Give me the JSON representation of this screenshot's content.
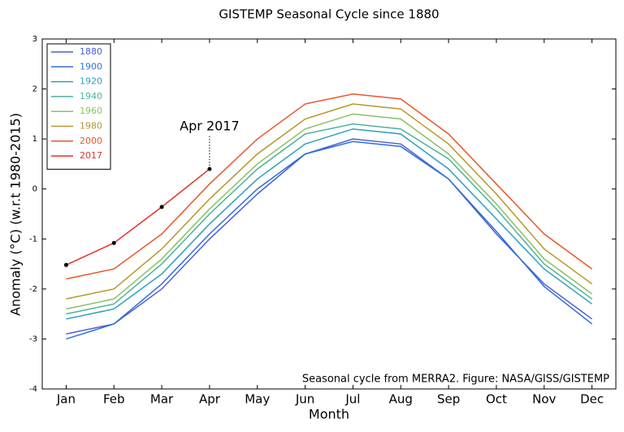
{
  "chart_data": {
    "type": "line",
    "title": "GISTEMP Seasonal Cycle since 1880",
    "x_label": "Month",
    "y_label": "Anomaly (°C) (w.r.t 1980-2015)",
    "annotation": "Apr 2017",
    "footnote": "Seasonal cycle from MERRA2. Figure: NASA/GISS/GISTEMP",
    "categories": [
      "Jan",
      "Feb",
      "Mar",
      "Apr",
      "May",
      "Jun",
      "Jul",
      "Aug",
      "Sep",
      "Oct",
      "Nov",
      "Dec"
    ],
    "ylim": [
      -4,
      3
    ],
    "yticks": [
      -4,
      -3,
      -2,
      -1,
      0,
      1,
      2,
      3
    ],
    "legend": "upper left",
    "series": [
      {
        "name": "1880",
        "color": "#4a5fdc",
        "values": [
          -2.9,
          -2.7,
          -2.0,
          -1.0,
          -0.1,
          0.7,
          1.0,
          0.9,
          0.2,
          -0.9,
          -1.9,
          -2.6
        ]
      },
      {
        "name": "1900",
        "color": "#2f6fd6",
        "values": [
          -3.0,
          -2.7,
          -1.9,
          -0.9,
          0.0,
          0.7,
          0.95,
          0.85,
          0.2,
          -0.85,
          -1.95,
          -2.7
        ]
      },
      {
        "name": "1920",
        "color": "#2d9fbf",
        "values": [
          -2.6,
          -2.4,
          -1.7,
          -0.7,
          0.2,
          0.9,
          1.2,
          1.1,
          0.4,
          -0.6,
          -1.6,
          -2.3
        ]
      },
      {
        "name": "1940",
        "color": "#4db39a",
        "values": [
          -2.5,
          -2.3,
          -1.5,
          -0.5,
          0.4,
          1.1,
          1.3,
          1.2,
          0.6,
          -0.4,
          -1.5,
          -2.2
        ]
      },
      {
        "name": "1960",
        "color": "#8cc063",
        "values": [
          -2.4,
          -2.2,
          -1.4,
          -0.4,
          0.5,
          1.2,
          1.5,
          1.4,
          0.7,
          -0.3,
          -1.4,
          -2.1
        ]
      },
      {
        "name": "1980",
        "color": "#b3982b",
        "values": [
          -2.2,
          -2.0,
          -1.2,
          -0.2,
          0.7,
          1.4,
          1.7,
          1.6,
          0.9,
          -0.1,
          -1.2,
          -1.9
        ]
      },
      {
        "name": "2000",
        "color": "#e8582a",
        "values": [
          -1.8,
          -1.6,
          -0.9,
          0.1,
          1.0,
          1.7,
          1.9,
          1.8,
          1.1,
          0.1,
          -0.9,
          -1.6
        ]
      },
      {
        "name": "2017",
        "color": "#e5302a",
        "values": [
          -1.52,
          -1.08,
          -0.36,
          0.4,
          null,
          null,
          null,
          null,
          null,
          null,
          null,
          null
        ]
      }
    ]
  }
}
